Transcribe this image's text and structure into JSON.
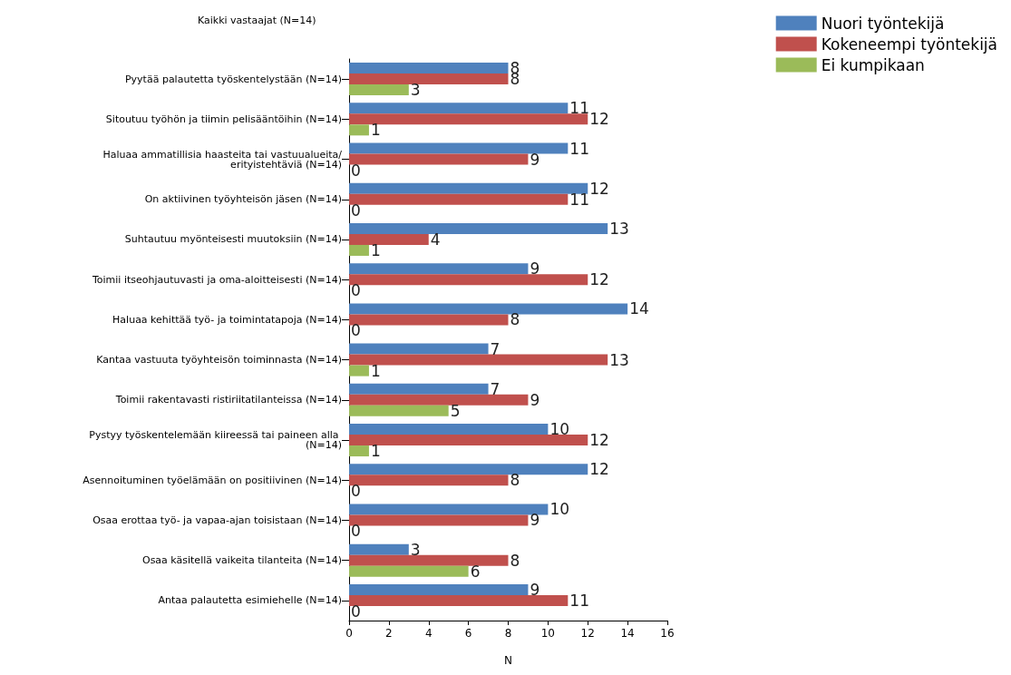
{
  "chart_data": {
    "type": "bar",
    "orientation": "horizontal",
    "title": "Kaikki vastaajat (N=14)",
    "xlabel": "N",
    "categories": [
      "Pyytää palautetta työskentelystään (N=14)",
      "Sitoutuu työhön ja tiimin pelisääntöihin (N=14)",
      "Haluaa ammatillisia haasteita tai vastuualueita/erityistehtäviä (N=14)",
      "On aktiivinen työyhteisön jäsen (N=14)",
      "Suhtautuu myönteisesti muutoksiin (N=14)",
      "Toimii itseohjautuvasti ja oma-aloitteisesti (N=14)",
      "Haluaa kehittää työ- ja toimintatapoja (N=14)",
      "Kantaa vastuuta työyhteisön toiminnasta (N=14)",
      "Toimii rakentavasti ristiriitatilanteissa (N=14)",
      "Pystyy työskentelemään kiireessä tai paineen alla (N=14)",
      "Asennoituminen työelämään on positiivinen (N=14)",
      "Osaa erottaa työ- ja vapaa-ajan toisistaan (N=14)",
      "Osaa käsitellä vaikeita tilanteita (N=14)",
      "Antaa palautetta esimiehelle (N=14)"
    ],
    "series": [
      {
        "name": "Nuori työntekijä",
        "color": "#4f81bd",
        "values": [
          8,
          11,
          11,
          12,
          13,
          9,
          14,
          7,
          7,
          10,
          12,
          10,
          3,
          9
        ]
      },
      {
        "name": "Kokeneempi työntekijä",
        "color": "#c0504d",
        "values": [
          8,
          12,
          9,
          11,
          4,
          12,
          8,
          13,
          9,
          12,
          8,
          9,
          8,
          11
        ]
      },
      {
        "name": "Ei kumpikaan",
        "color": "#9bbb59",
        "values": [
          3,
          1,
          0,
          0,
          1,
          0,
          0,
          1,
          5,
          1,
          0,
          0,
          6,
          0
        ]
      }
    ],
    "xlim": [
      0,
      16
    ],
    "xticks": [
      0,
      2,
      4,
      6,
      8,
      10,
      12,
      14,
      16
    ],
    "data_labels": true,
    "grid": false,
    "legend": "top right"
  }
}
